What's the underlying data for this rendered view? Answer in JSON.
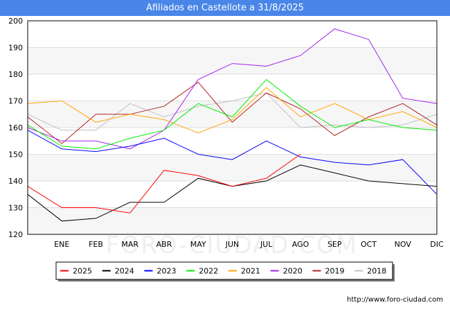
{
  "chart_data": {
    "type": "line",
    "title": "Afiliados en Castellote a 31/8/2025",
    "categories": [
      "",
      "ENE",
      "FEB",
      "MAR",
      "ABR",
      "MAY",
      "JUN",
      "JUL",
      "AGO",
      "SEP",
      "OCT",
      "NOV",
      "DIC"
    ],
    "ylim": [
      120,
      200
    ],
    "yticks": [
      120,
      130,
      140,
      150,
      160,
      170,
      180,
      190,
      200
    ],
    "grid": true,
    "legend_position": "bottom",
    "series": [
      {
        "name": "2025",
        "color": "#ff0000",
        "values": [
          138,
          130,
          130,
          128,
          144,
          142,
          138,
          141,
          150,
          null,
          null,
          null,
          null
        ]
      },
      {
        "name": "2024",
        "color": "#000000",
        "values": [
          135,
          125,
          126,
          132,
          132,
          141,
          138,
          140,
          146,
          143,
          140,
          139,
          138
        ]
      },
      {
        "name": "2023",
        "color": "#0000ff",
        "values": [
          159,
          152,
          151,
          153,
          156,
          150,
          148,
          155,
          149,
          147,
          146,
          148,
          135
        ]
      },
      {
        "name": "2022",
        "color": "#00ee00",
        "values": [
          161,
          153,
          152,
          156,
          159,
          169,
          164,
          178,
          168,
          160,
          163,
          160,
          159
        ]
      },
      {
        "name": "2021",
        "color": "#ffa500",
        "values": [
          169,
          170,
          162,
          165,
          163,
          158,
          163,
          175,
          164,
          169,
          163,
          166,
          160
        ]
      },
      {
        "name": "2020",
        "color": "#a020f0",
        "values": [
          160,
          155,
          155,
          152,
          159,
          178,
          184,
          183,
          187,
          197,
          193,
          171,
          169
        ]
      },
      {
        "name": "2019",
        "color": "#b22222",
        "values": [
          164,
          154,
          165,
          165,
          168,
          177,
          162,
          173,
          167,
          157,
          164,
          169,
          161
        ]
      },
      {
        "name": "2018",
        "color": "#c0c0c0",
        "values": [
          165,
          159,
          159,
          169,
          164,
          168,
          170,
          173,
          160,
          161,
          160,
          161,
          165
        ]
      }
    ]
  },
  "watermark": "FORO-CIUDAD.COM",
  "credit": "http://www.foro-ciudad.com"
}
